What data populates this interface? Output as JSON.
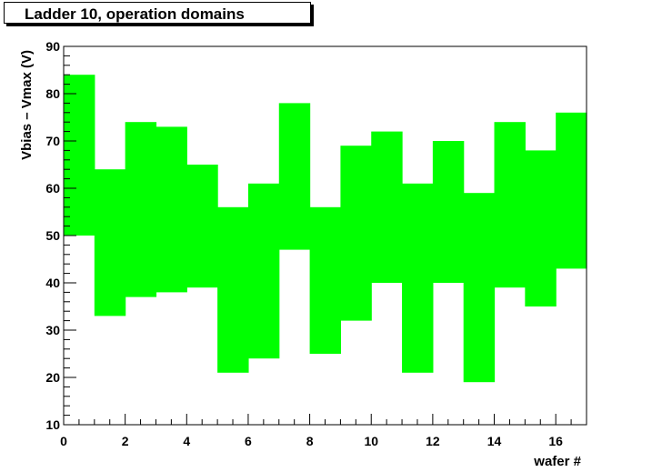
{
  "chart_data": {
    "type": "bar",
    "subtype": "floating-range",
    "title": "Ladder 10, operation domains",
    "xlabel": "wafer #",
    "ylabel": "Vbias – Vmax (V)",
    "xlim": [
      0,
      17
    ],
    "ylim": [
      10,
      90
    ],
    "x_major_ticks": [
      0,
      2,
      4,
      6,
      8,
      10,
      12,
      14,
      16
    ],
    "y_major_ticks": [
      10,
      20,
      30,
      40,
      50,
      60,
      70,
      80,
      90
    ],
    "fill_color": "#00ff00",
    "bins": [
      {
        "x": 0,
        "low": 50,
        "high": 84
      },
      {
        "x": 1,
        "low": 33,
        "high": 64
      },
      {
        "x": 2,
        "low": 37,
        "high": 74
      },
      {
        "x": 3,
        "low": 38,
        "high": 73
      },
      {
        "x": 4,
        "low": 39,
        "high": 65
      },
      {
        "x": 5,
        "low": 21,
        "high": 56
      },
      {
        "x": 6,
        "low": 24,
        "high": 61
      },
      {
        "x": 7,
        "low": 47,
        "high": 78
      },
      {
        "x": 8,
        "low": 25,
        "high": 56
      },
      {
        "x": 9,
        "low": 32,
        "high": 69
      },
      {
        "x": 10,
        "low": 40,
        "high": 72
      },
      {
        "x": 11,
        "low": 21,
        "high": 61
      },
      {
        "x": 12,
        "low": 40,
        "high": 70
      },
      {
        "x": 13,
        "low": 19,
        "high": 59
      },
      {
        "x": 14,
        "low": 39,
        "high": 74
      },
      {
        "x": 15,
        "low": 35,
        "high": 68
      },
      {
        "x": 16,
        "low": 43,
        "high": 76
      }
    ]
  }
}
